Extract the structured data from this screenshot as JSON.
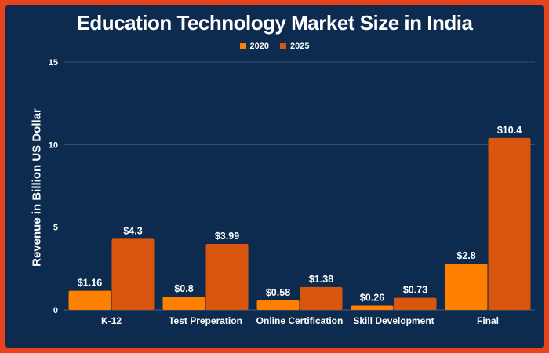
{
  "chart_data": {
    "type": "bar",
    "title": "Education Technology Market Size in India",
    "xlabel": "",
    "ylabel": "Revenue in Billion US Dollar",
    "ylim": [
      0,
      15
    ],
    "yticks": [
      "0",
      "5",
      "10",
      "15"
    ],
    "grid": true,
    "legend_position": "top-center",
    "categories": [
      "K-12",
      "Test Preperation",
      "Online Certification",
      "Skill Development",
      "Final"
    ],
    "series": [
      {
        "name": "2020",
        "color": "#ff7f00",
        "values": [
          1.16,
          0.8,
          0.58,
          0.26,
          2.8
        ],
        "labels": [
          "$1.16",
          "$0.8",
          "$0.58",
          "$0.26",
          "$2.8"
        ]
      },
      {
        "name": "2025",
        "color": "#d9560f",
        "values": [
          4.3,
          3.99,
          1.38,
          0.73,
          10.4
        ],
        "labels": [
          "$4.3",
          "$3.99",
          "$1.38",
          "$0.73",
          "$10.4"
        ]
      }
    ]
  },
  "colors": {
    "background": "#0c2b4e",
    "border": "#e8431c",
    "text": "#ffffff",
    "gridline": "#3d5878"
  }
}
